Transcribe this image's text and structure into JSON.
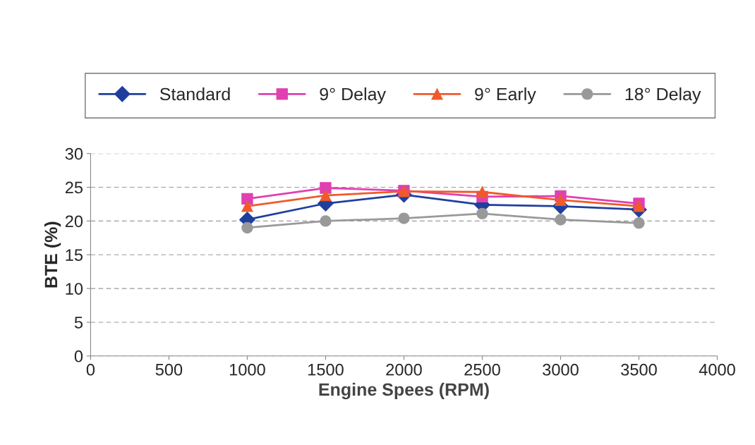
{
  "chart_data": {
    "type": "line",
    "xlabel": "Engine Spees (RPM)",
    "ylabel": "BTE (%)",
    "x": [
      1000,
      1500,
      2000,
      2500,
      3000,
      3500
    ],
    "series": [
      {
        "name": "Standard",
        "color": "#1f3f9f",
        "marker": "diamond",
        "values": [
          20.2,
          22.6,
          23.9,
          22.4,
          22.2,
          21.7
        ]
      },
      {
        "name": "9° Delay",
        "color": "#e040b0",
        "marker": "square",
        "values": [
          23.3,
          24.9,
          24.5,
          23.6,
          23.7,
          22.6
        ]
      },
      {
        "name": "9° Early",
        "color": "#f05a2a",
        "marker": "triangle",
        "values": [
          22.2,
          23.8,
          24.4,
          24.3,
          23.1,
          22.2
        ]
      },
      {
        "name": "18° Delay",
        "color": "#999999",
        "marker": "circle",
        "values": [
          19.0,
          20.0,
          20.4,
          21.1,
          20.2,
          19.7
        ]
      }
    ],
    "xlim": [
      0,
      4000
    ],
    "xticks": [
      0,
      500,
      1000,
      1500,
      2000,
      2500,
      3000,
      3500,
      4000
    ],
    "ylim": [
      0,
      30
    ],
    "yticks": [
      0,
      5,
      10,
      15,
      20,
      25,
      30
    ],
    "grid": "y",
    "legend": "top",
    "line_style": "solid"
  }
}
